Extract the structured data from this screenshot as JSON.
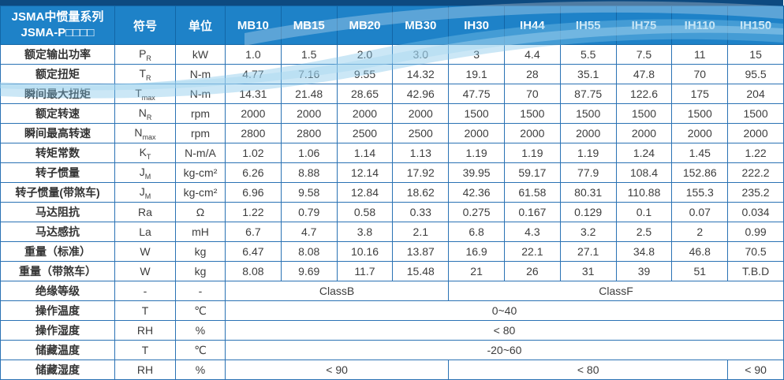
{
  "colors": {
    "header_bg": "#1e82c8",
    "header_border": "#1266a6",
    "top_bar": "#0d4a80",
    "grid_border": "#2a72b4",
    "wave_blue": "#7ec3e8",
    "text": "#3d3d3d"
  },
  "table": {
    "title_line1": "JSMA中惯量系列",
    "title_line2": "JSMA-P□□□□",
    "symbol_header": "符号",
    "unit_header": "单位",
    "models": [
      "MB10",
      "MB15",
      "MB20",
      "MB30",
      "IH30",
      "IH44",
      "IH55",
      "IH75",
      "IH110",
      "IH150"
    ],
    "rows": [
      {
        "label": "额定输出功率",
        "symbol": "P",
        "symbol_sub": "R",
        "unit": "kW",
        "values": [
          "1.0",
          "1.5",
          "2.0",
          "3.0",
          "3",
          "4.4",
          "5.5",
          "7.5",
          "11",
          "15"
        ]
      },
      {
        "label": "额定扭矩",
        "symbol": "T",
        "symbol_sub": "R",
        "unit": "N-m",
        "values": [
          "4.77",
          "7.16",
          "9.55",
          "14.32",
          "19.1",
          "28",
          "35.1",
          "47.8",
          "70",
          "95.5"
        ]
      },
      {
        "label": "瞬间最大扭矩",
        "symbol": "T",
        "symbol_sub": "max",
        "unit": "N-m",
        "values": [
          "14.31",
          "21.48",
          "28.65",
          "42.96",
          "47.75",
          "70",
          "87.75",
          "122.6",
          "175",
          "204"
        ]
      },
      {
        "label": "额定转速",
        "symbol": "N",
        "symbol_sub": "R",
        "unit": "rpm",
        "values": [
          "2000",
          "2000",
          "2000",
          "2000",
          "1500",
          "1500",
          "1500",
          "1500",
          "1500",
          "1500"
        ]
      },
      {
        "label": "瞬间最高转速",
        "symbol": "N",
        "symbol_sub": "max",
        "unit": "rpm",
        "values": [
          "2800",
          "2800",
          "2500",
          "2500",
          "2000",
          "2000",
          "2000",
          "2000",
          "2000",
          "2000"
        ]
      },
      {
        "label": "转矩常数",
        "symbol": "K",
        "symbol_sub": "T",
        "unit": "N-m/A",
        "values": [
          "1.02",
          "1.06",
          "1.14",
          "1.13",
          "1.19",
          "1.19",
          "1.19",
          "1.24",
          "1.45",
          "1.22"
        ]
      },
      {
        "label": "转子惯量",
        "symbol": "J",
        "symbol_sub": "M",
        "unit": "kg-cm²",
        "values": [
          "6.26",
          "8.88",
          "12.14",
          "17.92",
          "39.95",
          "59.17",
          "77.9",
          "108.4",
          "152.86",
          "222.2"
        ]
      },
      {
        "label": "转子惯量(带煞车)",
        "symbol": "J",
        "symbol_sub": "M",
        "unit": "kg-cm²",
        "values": [
          "6.96",
          "9.58",
          "12.84",
          "18.62",
          "42.36",
          "61.58",
          "80.31",
          "110.88",
          "155.3",
          "235.2"
        ]
      },
      {
        "label": "马达阻抗",
        "symbol": "Ra",
        "symbol_sub": "",
        "unit": "Ω",
        "values": [
          "1.22",
          "0.79",
          "0.58",
          "0.33",
          "0.275",
          "0.167",
          "0.129",
          "0.1",
          "0.07",
          "0.034"
        ]
      },
      {
        "label": "马达感抗",
        "symbol": "La",
        "symbol_sub": "",
        "unit": "mH",
        "values": [
          "6.7",
          "4.7",
          "3.8",
          "2.1",
          "6.8",
          "4.3",
          "3.2",
          "2.5",
          "2",
          "0.99"
        ]
      },
      {
        "label": "重量（标准）",
        "symbol": "W",
        "symbol_sub": "",
        "unit": "kg",
        "values": [
          "6.47",
          "8.08",
          "10.16",
          "13.87",
          "16.9",
          "22.1",
          "27.1",
          "34.8",
          "46.8",
          "70.5"
        ]
      },
      {
        "label": "重量（带煞车）",
        "symbol": "W",
        "symbol_sub": "",
        "unit": "kg",
        "values": [
          "8.08",
          "9.69",
          "11.7",
          "15.48",
          "21",
          "26",
          "31",
          "39",
          "51",
          "T.B.D"
        ]
      },
      {
        "label": "绝缘等级",
        "symbol": "-",
        "symbol_sub": "",
        "unit": "-",
        "spans": [
          {
            "text": "ClassB",
            "cols": 4
          },
          {
            "text": "ClassF",
            "cols": 6
          }
        ]
      },
      {
        "label": "操作温度",
        "symbol": "T",
        "symbol_sub": "",
        "unit": "℃",
        "spans": [
          {
            "text": "0~40",
            "cols": 10
          }
        ]
      },
      {
        "label": "操作湿度",
        "symbol": "RH",
        "symbol_sub": "",
        "unit": "%",
        "spans": [
          {
            "text": "< 80",
            "cols": 10
          }
        ]
      },
      {
        "label": "储藏温度",
        "symbol": "T",
        "symbol_sub": "",
        "unit": "℃",
        "spans": [
          {
            "text": "-20~60",
            "cols": 10
          }
        ]
      },
      {
        "label": "储藏湿度",
        "symbol": "RH",
        "symbol_sub": "",
        "unit": "%",
        "spans": [
          {
            "text": "< 90",
            "cols": 4
          },
          {
            "text": "< 80",
            "cols": 5
          },
          {
            "text": "< 90",
            "cols": 1
          }
        ]
      }
    ]
  }
}
